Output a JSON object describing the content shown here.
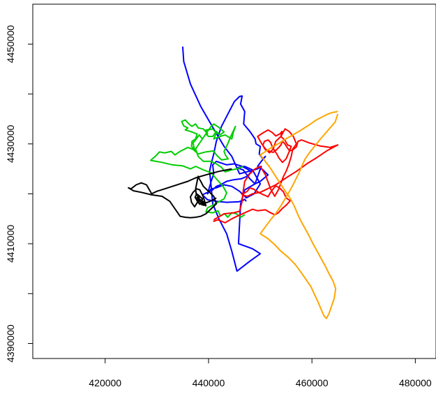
{
  "chart_data": {
    "type": "line",
    "title": "",
    "xlabel": "",
    "ylabel": "",
    "xlim": [
      406000,
      484000
    ],
    "ylim": [
      4387000,
      4458000
    ],
    "x_ticks": [
      420000,
      440000,
      460000,
      480000
    ],
    "y_ticks": [
      4390000,
      4410000,
      4430000,
      4450000
    ],
    "y_minor_ticks": [
      4400000,
      4420000,
      4440000
    ],
    "x_tick_labels": [
      "420000",
      "440000",
      "460000",
      "480000"
    ],
    "y_tick_labels": [
      "4390000",
      "4410000",
      "4430000",
      "4450000"
    ],
    "grid": false,
    "legend": "none",
    "series": [
      {
        "color": "#0000ff",
        "x": [
          435000,
          435200,
          436500,
          438500,
          441000,
          443000,
          444500,
          446000,
          449500,
          450200,
          449000,
          447000,
          446200,
          446000,
          445800,
          448500,
          450000,
          448000,
          445500,
          444500,
          443500,
          442000,
          440800,
          440500,
          440200,
          440500,
          441000,
          441500,
          442500,
          444000,
          445000,
          446000,
          446500,
          446200,
          447000,
          446800,
          448000,
          449000,
          449200,
          450000,
          449800,
          450500,
          451000,
          450200,
          449500,
          450500,
          451500,
          450000,
          449000,
          448000,
          446700,
          445500,
          447000,
          448500,
          450000,
          448800,
          447300,
          446000,
          444500,
          443000,
          441500,
          440500,
          439800,
          440500,
          441000,
          440800,
          441500,
          443500,
          445000,
          446500,
          448300,
          447500,
          446300,
          444800,
          443500,
          442300,
          441500,
          440800,
          438800,
          439800,
          441500,
          443500,
          445800,
          446500,
          447000,
          447300
        ],
        "y": [
          4449500,
          4446500,
          4442000,
          4437500,
          4433000,
          4429500,
          4427500,
          4424000,
          4425000,
          4425500,
          4422000,
          4420800,
          4418000,
          4414000,
          4410000,
          4409000,
          4408000,
          4406500,
          4404500,
          4408500,
          4412000,
          4415000,
          4418000,
          4421500,
          4424500,
          4426000,
          4428000,
          4430500,
          4433500,
          4436500,
          4438500,
          4439500,
          4439600,
          4438000,
          4436500,
          4434000,
          4432500,
          4431000,
          4430000,
          4429500,
          4428000,
          4427000,
          4427500,
          4426500,
          4425500,
          4424800,
          4423800,
          4422500,
          4422000,
          4423000,
          4424800,
          4425200,
          4425500,
          4424800,
          4422000,
          4420000,
          4419200,
          4420500,
          4421500,
          4421800,
          4421200,
          4421000,
          4420000,
          4422500,
          4424000,
          4425800,
          4426500,
          4425800,
          4426000,
          4425500,
          4424500,
          4423500,
          4423000,
          4422800,
          4422500,
          4421800,
          4421500,
          4420800,
          4419800,
          4418800,
          4418500,
          4418300,
          4418400,
          4418600,
          4418900,
          4418500
        ]
      },
      {
        "color": "#00cd00",
        "x": [
          446700,
          445500,
          444500,
          443200,
          442500,
          441500,
          440500,
          439000,
          438000,
          437500,
          438500,
          439800,
          440500,
          441000,
          442000,
          443000,
          442200,
          441500,
          440800,
          440000,
          439500,
          438800,
          438200,
          437500,
          437000,
          437300,
          436700,
          436800,
          437500,
          437800,
          436500,
          435500,
          436000,
          435200,
          434800,
          435500,
          436200,
          436800,
          437500,
          438000,
          439000,
          439800,
          439500,
          440800,
          441500,
          441000,
          442500,
          443200,
          444500,
          444800,
          445200,
          444300,
          443700,
          443000,
          443300,
          443800,
          442500,
          441500,
          441000,
          439500,
          438000,
          437000,
          436000,
          434500,
          433500,
          432800,
          431500,
          430500,
          429800,
          428800,
          431000,
          433000,
          435000,
          436500,
          437500,
          439000,
          440500,
          441500,
          442800,
          443500,
          443000,
          441800,
          440800,
          439800,
          439500,
          440800,
          441800,
          442300,
          443100,
          443700,
          444500,
          445400,
          446200,
          447000
        ],
        "y": [
          4425500,
          4425000,
          4424800,
          4424400,
          4425300,
          4426000,
          4426500,
          4426500,
          4427500,
          4429000,
          4430500,
          4432500,
          4433500,
          4434000,
          4433300,
          4432400,
          4431800,
          4432500,
          4431500,
          4431500,
          4432000,
          4431000,
          4431800,
          4430800,
          4430200,
          4428800,
          4429500,
          4430500,
          4431000,
          4432000,
          4432500,
          4432800,
          4433200,
          4433600,
          4434500,
          4434800,
          4434000,
          4433500,
          4434000,
          4433200,
          4433000,
          4432000,
          4432800,
          4433000,
          4432200,
          4431000,
          4431600,
          4431800,
          4431000,
          4432300,
          4433500,
          4431500,
          4430000,
          4428500,
          4427700,
          4427000,
          4426800,
          4427800,
          4428600,
          4428400,
          4428000,
          4428900,
          4429300,
          4428500,
          4427800,
          4428500,
          4428200,
          4428400,
          4427600,
          4426700,
          4426300,
          4425800,
          4425600,
          4425000,
          4425500,
          4424800,
          4424200,
          4423000,
          4421500,
          4420200,
          4419000,
          4418300,
          4417700,
          4417200,
          4416400,
          4416200,
          4416600,
          4415600,
          4416000,
          4415300,
          4416200,
          4416000,
          4415300,
          4415800
        ]
      },
      {
        "color": "#ff0000",
        "x": [
          441000,
          443000,
          444800,
          446000,
          446500,
          446700,
          447000,
          448000,
          449000,
          450000,
          451000,
          452000,
          452800,
          453500,
          454500,
          455000,
          455500,
          456000,
          456300,
          457000,
          456400,
          455600,
          454800,
          454000,
          453000,
          452500,
          451800,
          451000,
          450300,
          449500,
          450500,
          451500,
          452300,
          453000,
          453800,
          454200,
          454000,
          454800,
          455300,
          456000,
          455500,
          455000,
          454300,
          453600,
          453200,
          452800,
          452300,
          452000,
          451500,
          450800,
          450500,
          451000,
          452500,
          453000,
          453600,
          454000,
          454300,
          454700,
          455200,
          455700,
          456300,
          457000,
          457300,
          458000,
          459500,
          461500,
          463500,
          465000,
          463000,
          461000,
          459000,
          457000,
          455000,
          453000,
          451000,
          450000,
          448500,
          447500,
          446500,
          447000,
          447500,
          448000,
          448800,
          449800,
          450700,
          451500,
          452000,
          452500,
          453000,
          453700,
          454500,
          455000,
          455800,
          455000,
          454200,
          453500,
          452800,
          452000,
          451000,
          449500,
          448500,
          447000,
          445500,
          444500,
          443200,
          441800,
          441000,
          441200
        ],
        "y": [
          4414800,
          4416000,
          4416200,
          4416500,
          4418500,
          4420500,
          4422500,
          4424000,
          4425000,
          4425500,
          4423800,
          4421000,
          4419500,
          4420800,
          4423500,
          4424500,
          4425800,
          4427500,
          4429000,
          4430000,
          4431500,
          4432500,
          4433000,
          4431500,
          4430500,
          4429000,
          4428200,
          4429000,
          4430000,
          4431500,
          4432200,
          4432800,
          4432300,
          4431600,
          4432000,
          4432500,
          4431500,
          4430700,
          4429800,
          4429500,
          4428200,
          4427000,
          4426300,
          4427200,
          4428000,
          4428600,
          4429500,
          4430300,
          4430800,
          4430500,
          4429700,
          4428800,
          4428300,
          4428700,
          4429300,
          4429800,
          4430500,
          4430100,
          4429300,
          4428600,
          4428800,
          4429400,
          4430500,
          4430800,
          4430200,
          4429600,
          4429300,
          4429800,
          4428700,
          4427300,
          4426000,
          4424500,
          4423200,
          4421800,
          4420800,
          4420300,
          4420000,
          4419500,
          4419800,
          4420200,
          4420500,
          4421200,
          4420900,
          4420200,
          4419800,
          4419400,
          4420300,
          4421000,
          4421600,
          4421200,
          4420400,
          4419200,
          4418600,
          4417700,
          4417000,
          4416200,
          4415800,
          4416200,
          4416800,
          4416600,
          4416900,
          4416200,
          4415500,
          4415000,
          4414200,
          4414800,
          4414500,
          4414600
        ]
      },
      {
        "color": "#ffa500",
        "x": [
          465000,
          464500,
          463500,
          462500,
          461500,
          460500,
          459500,
          458700,
          458100,
          457600,
          456900,
          456300,
          455600,
          454800,
          454000,
          453100,
          452000,
          451000,
          450000,
          451500,
          452800,
          454000,
          455500,
          456800,
          457800,
          458800,
          459800,
          460500,
          461200,
          461800,
          462300,
          462800,
          463300,
          463800,
          464300,
          464600,
          464100,
          463300,
          462600,
          461800,
          461000,
          460200,
          459500,
          458700,
          457900,
          457200,
          456600,
          456000,
          455400,
          454800,
          454300,
          453800,
          453300,
          452800,
          452300,
          451800,
          451200,
          450600,
          450000,
          451200,
          452400,
          453600,
          454600,
          455800,
          456800,
          457800,
          458700,
          459600,
          460400,
          461200,
          462000,
          462700,
          463400,
          464000,
          464500,
          465000
        ],
        "y": [
          4436000,
          4434400,
          4433200,
          4432000,
          4430800,
          4429500,
          4428200,
          4427000,
          4425700,
          4424400,
          4423000,
          4421700,
          4420400,
          4419000,
          4417600,
          4416200,
          4414800,
          4413400,
          4412000,
          4411000,
          4409800,
          4408500,
          4407200,
          4405800,
          4404400,
          4402900,
          4401400,
          4399800,
          4398300,
          4396800,
          4395600,
          4395000,
          4396000,
          4397500,
          4399000,
          4401000,
          4402500,
          4404000,
          4405500,
          4407000,
          4408500,
          4410000,
          4411500,
          4413000,
          4414500,
          4416000,
          4417500,
          4418700,
          4419700,
          4420600,
          4421400,
          4422200,
          4423000,
          4423800,
          4424600,
          4425400,
          4426200,
          4427000,
          4427800,
          4428600,
          4429400,
          4430100,
          4430800,
          4431500,
          4432100,
          4432700,
          4433300,
          4433900,
          4434500,
          4435000,
          4435400,
          4435800,
          4436100,
          4436300,
          4436400,
          4436500
        ]
      },
      {
        "color": "#000000",
        "x": [
          444500,
          442000,
          439500,
          437500,
          436000,
          434500,
          433000,
          431500,
          430000,
          429000,
          428000,
          427000,
          426000,
          425000,
          424500,
          425500,
          427000,
          429000,
          431000,
          432500,
          433500,
          434500,
          435500,
          436500,
          437500,
          438500,
          439500,
          440500,
          441500,
          441000,
          440000,
          439000,
          438500,
          438200,
          438000,
          437800,
          437500,
          437600,
          438200,
          437800,
          437300,
          436700,
          436500,
          437000,
          437700,
          438300,
          438800,
          439200,
          439500,
          438900,
          438300,
          437800,
          437600,
          437900,
          438300,
          438700,
          438800,
          438200,
          437700,
          437400,
          437800,
          438400,
          439000,
          439300,
          438600,
          438000,
          437900,
          438300,
          439000,
          439800,
          440500,
          441500
        ],
        "y": [
          4425000,
          4424500,
          4423800,
          4423200,
          4422500,
          4422000,
          4421500,
          4421000,
          4420500,
          4420000,
          4421800,
          4422200,
          4421800,
          4421000,
          4421200,
          4420600,
          4420300,
          4419800,
          4419500,
          4418500,
          4417000,
          4415500,
          4415300,
          4415200,
          4415300,
          4415500,
          4416000,
          4417000,
          4418000,
          4419500,
          4420500,
          4421500,
          4422500,
          4423000,
          4423500,
          4422500,
          4421000,
          4420000,
          4419200,
          4418200,
          4417400,
          4418300,
          4419400,
          4420300,
          4421000,
          4420800,
          4419800,
          4418700,
          4417600,
          4417900,
          4418600,
          4419300,
          4419000,
          4418400,
          4417900,
          4418300,
          4419000,
          4419600,
          4420000,
          4419300,
          4418600,
          4418000,
          4417700,
          4418200,
          4418700,
          4419100,
          4418900,
          4418500,
          4418100,
          4418300,
          4418600,
          4419200
        ]
      }
    ]
  }
}
